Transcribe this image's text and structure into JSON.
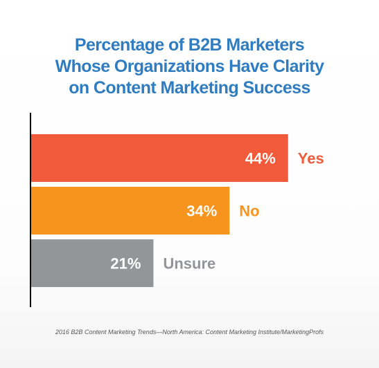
{
  "title_lines": [
    "Percentage of B2B Marketers",
    "Whose Organizations Have Clarity",
    "on Content Marketing Success"
  ],
  "source": "2016 B2B Content Marketing Trends—North America: Content Marketing Institute/MarketingProfs",
  "chart_data": {
    "type": "bar",
    "orientation": "horizontal",
    "title": "Percentage of B2B Marketers Whose Organizations Have Clarity on Content Marketing Success",
    "categories": [
      "Yes",
      "No",
      "Unsure"
    ],
    "values": [
      44,
      34,
      21
    ],
    "value_labels": [
      "44%",
      "34%",
      "21%"
    ],
    "colors": [
      "#f15a3a",
      "#f7941e",
      "#939598"
    ],
    "label_colors": [
      "#f15a3a",
      "#f7941e",
      "#939598"
    ],
    "value_label_color": "#ffffff",
    "axis_color": "#000000",
    "xlim": [
      0,
      100
    ],
    "grid": false,
    "legend": "none",
    "xlabel": "",
    "ylabel": ""
  }
}
